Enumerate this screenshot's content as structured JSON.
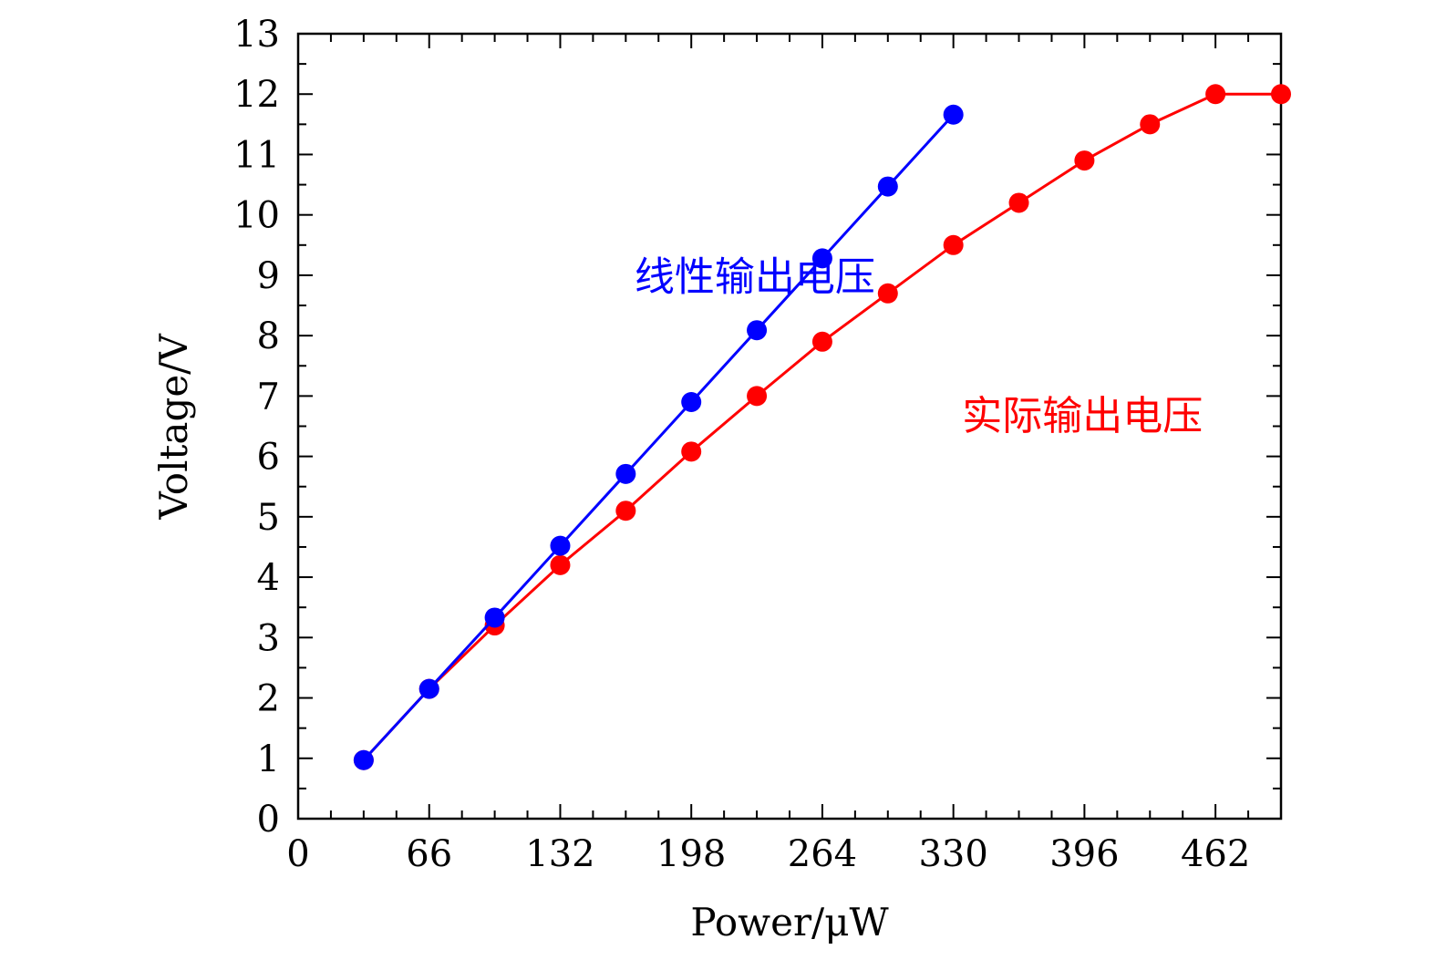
{
  "chart_data": {
    "type": "line",
    "title": "",
    "xlabel": "Power/μW",
    "ylabel": "Voltage/V",
    "xlim": [
      0,
      495
    ],
    "ylim": [
      0,
      13
    ],
    "xticks": [
      0,
      66,
      132,
      198,
      264,
      330,
      396,
      462
    ],
    "yticks": [
      0,
      1,
      2,
      3,
      4,
      5,
      6,
      7,
      8,
      9,
      10,
      11,
      12,
      13
    ],
    "grid": false,
    "legend": "none",
    "series": [
      {
        "name": "线性输出电压",
        "color": "#0000ff",
        "x": [
          33,
          66,
          99,
          132,
          165,
          198,
          231,
          264,
          297,
          330
        ],
        "y": [
          0.97,
          2.15,
          3.33,
          4.52,
          5.71,
          6.9,
          8.09,
          9.28,
          10.47,
          11.66
        ],
        "label_anchor": [
          230,
          8.75
        ]
      },
      {
        "name": "实际输出电压",
        "color": "#ff0000",
        "x": [
          33,
          66,
          99,
          132,
          165,
          198,
          231,
          264,
          297,
          330,
          363,
          396,
          429,
          462,
          495
        ],
        "y": [
          0.97,
          2.15,
          3.2,
          4.2,
          5.1,
          6.08,
          7.0,
          7.9,
          8.7,
          9.5,
          10.2,
          10.9,
          11.5,
          12.0,
          12.0
        ],
        "label_anchor": [
          395,
          6.45
        ]
      }
    ]
  }
}
